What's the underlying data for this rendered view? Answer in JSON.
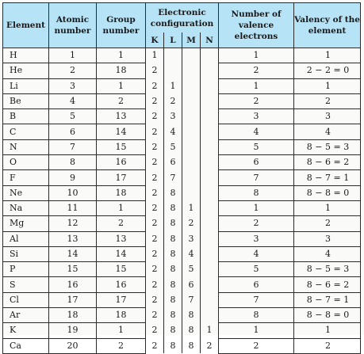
{
  "table": {
    "headers": {
      "element": "Element",
      "atomic_number": "Atomic number",
      "group_number": "Group number",
      "electronic_configuration": "Electronic configuration",
      "shells": [
        "K",
        "L",
        "M",
        "N"
      ],
      "valence_electrons": "Number of valence electrons",
      "valency": "Valency of the element"
    },
    "rows": [
      {
        "element": "H",
        "atomic": "1",
        "group": "1",
        "k": "1",
        "l": "",
        "m": "",
        "n": "",
        "valence": "1",
        "valency": "1"
      },
      {
        "element": "He",
        "atomic": "2",
        "group": "18",
        "k": "2",
        "l": "",
        "m": "",
        "n": "",
        "valence": "2",
        "valency": "2 − 2 = 0"
      },
      {
        "element": "Li",
        "atomic": "3",
        "group": "1",
        "k": "2",
        "l": "1",
        "m": "",
        "n": "",
        "valence": "1",
        "valency": "1"
      },
      {
        "element": "Be",
        "atomic": "4",
        "group": "2",
        "k": "2",
        "l": "2",
        "m": "",
        "n": "",
        "valence": "2",
        "valency": "2"
      },
      {
        "element": "B",
        "atomic": "5",
        "group": "13",
        "k": "2",
        "l": "3",
        "m": "",
        "n": "",
        "valence": "3",
        "valency": "3"
      },
      {
        "element": "C",
        "atomic": "6",
        "group": "14",
        "k": "2",
        "l": "4",
        "m": "",
        "n": "",
        "valence": "4",
        "valency": "4"
      },
      {
        "element": "N",
        "atomic": "7",
        "group": "15",
        "k": "2",
        "l": "5",
        "m": "",
        "n": "",
        "valence": "5",
        "valency": "8 − 5 = 3"
      },
      {
        "element": "O",
        "atomic": "8",
        "group": "16",
        "k": "2",
        "l": "6",
        "m": "",
        "n": "",
        "valence": "6",
        "valency": "8 − 6 = 2"
      },
      {
        "element": "F",
        "atomic": "9",
        "group": "17",
        "k": "2",
        "l": "7",
        "m": "",
        "n": "",
        "valence": "7",
        "valency": "8 − 7 = 1"
      },
      {
        "element": "Ne",
        "atomic": "10",
        "group": "18",
        "k": "2",
        "l": "8",
        "m": "",
        "n": "",
        "valence": "8",
        "valency": "8 − 8 = 0"
      },
      {
        "element": "Na",
        "atomic": "11",
        "group": "1",
        "k": "2",
        "l": "8",
        "m": "1",
        "n": "",
        "valence": "1",
        "valency": "1"
      },
      {
        "element": "Mg",
        "atomic": "12",
        "group": "2",
        "k": "2",
        "l": "8",
        "m": "2",
        "n": "",
        "valence": "2",
        "valency": "2"
      },
      {
        "element": "Al",
        "atomic": "13",
        "group": "13",
        "k": "2",
        "l": "8",
        "m": "3",
        "n": "",
        "valence": "3",
        "valency": "3"
      },
      {
        "element": "Si",
        "atomic": "14",
        "group": "14",
        "k": "2",
        "l": "8",
        "m": "4",
        "n": "",
        "valence": "4",
        "valency": "4"
      },
      {
        "element": "P",
        "atomic": "15",
        "group": "15",
        "k": "2",
        "l": "8",
        "m": "5",
        "n": "",
        "valence": "5",
        "valency": "8 − 5 = 3"
      },
      {
        "element": "S",
        "atomic": "16",
        "group": "16",
        "k": "2",
        "l": "8",
        "m": "6",
        "n": "",
        "valence": "6",
        "valency": "8 − 6 = 2"
      },
      {
        "element": "Cl",
        "atomic": "17",
        "group": "17",
        "k": "2",
        "l": "8",
        "m": "7",
        "n": "",
        "valence": "7",
        "valency": "8 − 7 = 1"
      },
      {
        "element": "Ar",
        "atomic": "18",
        "group": "18",
        "k": "2",
        "l": "8",
        "m": "8",
        "n": "",
        "valence": "8",
        "valency": "8 − 8 = 0"
      },
      {
        "element": "K",
        "atomic": "19",
        "group": "1",
        "k": "2",
        "l": "8",
        "m": "8",
        "n": "1",
        "valence": "1",
        "valency": "1"
      },
      {
        "element": "Ca",
        "atomic": "20",
        "group": "2",
        "k": "2",
        "l": "8",
        "m": "8",
        "n": "2",
        "valence": "2",
        "valency": "2"
      }
    ]
  },
  "colors": {
    "header_background": "#b7e3f6",
    "border": "#2b2b2b",
    "text": "#1a1a1a"
  }
}
